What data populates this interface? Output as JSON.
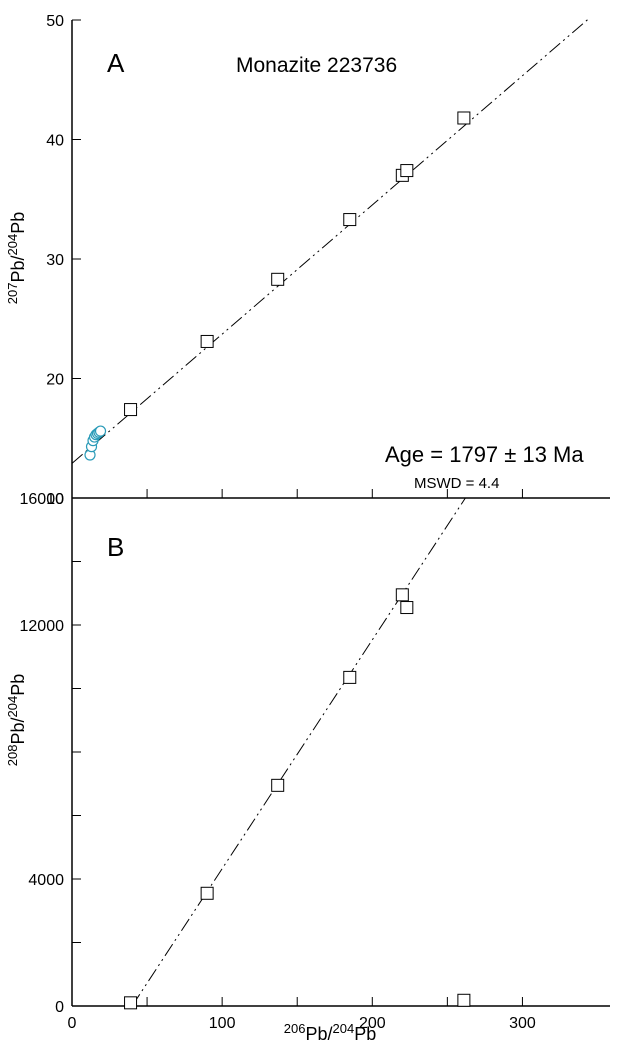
{
  "chart_data": [
    {
      "panel": "A",
      "type": "scatter",
      "title": "Monazite 223736",
      "annotation": {
        "age": "Age = 1797 ± 13 Ma",
        "mswd": "MSWD = 4.4"
      },
      "ylabel": {
        "mass_num": "207",
        "element": "Pb",
        "slash": "/",
        "mass_den": "204",
        "element_den": "Pb"
      },
      "xlim": [
        0,
        345
      ],
      "ylim": [
        10,
        50
      ],
      "yticks_labeled": [
        10,
        20,
        30,
        40,
        50
      ],
      "xticks": [
        0,
        50,
        100,
        150,
        200,
        250,
        300
      ],
      "series": [
        {
          "marker": "square",
          "x": [
            39,
            90,
            137,
            185,
            220,
            223,
            261
          ],
          "y": [
            17.4,
            23.1,
            28.3,
            33.3,
            37.0,
            37.4,
            41.8
          ]
        },
        {
          "marker": "circle",
          "color": "#2a9bb8",
          "x": [
            12,
            13,
            14,
            15,
            16,
            17,
            18,
            19
          ],
          "y": [
            13.6,
            14.3,
            14.8,
            15.1,
            15.3,
            15.4,
            15.5,
            15.6
          ]
        }
      ],
      "fit_line": {
        "x": [
          0,
          345
        ],
        "y": [
          12.9,
          50.2
        ]
      },
      "grid": false
    },
    {
      "panel": "B",
      "type": "scatter",
      "ylabel": {
        "mass_num": "208",
        "element": "Pb",
        "slash": "/",
        "mass_den": "204",
        "element_den": "Pb"
      },
      "xlabel": {
        "mass_num": "206",
        "element": "Pb",
        "slash": "/",
        "mass_den": "204",
        "element_den": "Pb"
      },
      "xlim": [
        0,
        345
      ],
      "ylim": [
        0,
        16000
      ],
      "yticks": [
        0,
        2000,
        4000,
        6000,
        8000,
        10000,
        12000,
        14000,
        16000
      ],
      "yticks_labeled": [
        0,
        4000,
        12000,
        16000
      ],
      "xticks": [
        0,
        50,
        100,
        150,
        200,
        250,
        300
      ],
      "xticks_labeled": [
        0,
        100,
        200,
        300
      ],
      "series": [
        {
          "marker": "square",
          "x": [
            39,
            90,
            137,
            185,
            220,
            223,
            261
          ],
          "y": [
            100,
            3550,
            6950,
            10350,
            12950,
            12550,
            180
          ]
        }
      ],
      "fit_line": {
        "x": [
          40,
          262
        ],
        "y": [
          0,
          16000
        ]
      },
      "grid": false
    }
  ]
}
